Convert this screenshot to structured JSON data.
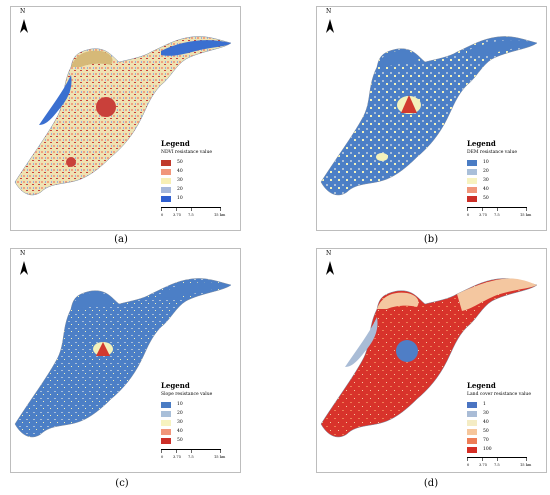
{
  "colors": {
    "border": "#bdbdbd",
    "water": "#3a6fd0",
    "ndvi_base": "#efe2b2",
    "ndvi_high": "#c9403a",
    "ndvi_mid": "#f1a17f",
    "dem_base": "#4c7fc6",
    "dem_mid": "#f3f1bb",
    "dem_high": "#d13a2e",
    "landcover_base": "#d8332b",
    "landcover_water": "#4f7ec6",
    "landcover_light": "#f4c7a0"
  },
  "panels": [
    {
      "id": "a",
      "caption": "(a)",
      "north": "N",
      "legend_title": "Legend",
      "legend_subtitle": "NDVI resistance value",
      "legend_items": [
        {
          "value": "50",
          "color": "#c0392b"
        },
        {
          "value": "40",
          "color": "#f1967a"
        },
        {
          "value": "30",
          "color": "#f7efb5"
        },
        {
          "value": "20",
          "color": "#a6b8db"
        },
        {
          "value": "10",
          "color": "#2f5fd0"
        }
      ],
      "scale_labels": [
        "0",
        "3.75",
        "7.5",
        "15 km"
      ]
    },
    {
      "id": "b",
      "caption": "(b)",
      "north": "N",
      "legend_title": "Legend",
      "legend_subtitle": "DEM resistance value",
      "legend_items": [
        {
          "value": "10",
          "color": "#4a7cc4"
        },
        {
          "value": "20",
          "color": "#a9bfd9"
        },
        {
          "value": "30",
          "color": "#f7f3bf"
        },
        {
          "value": "40",
          "color": "#f1967a"
        },
        {
          "value": "50",
          "color": "#cc2f28"
        }
      ],
      "scale_labels": [
        "0",
        "3.75",
        "7.5",
        "15 km"
      ]
    },
    {
      "id": "c",
      "caption": "(c)",
      "north": "N",
      "legend_title": "Legend",
      "legend_subtitle": "Slope resistance value",
      "legend_items": [
        {
          "value": "10",
          "color": "#4a7cc4"
        },
        {
          "value": "20",
          "color": "#a9bfd9"
        },
        {
          "value": "30",
          "color": "#f7f3bf"
        },
        {
          "value": "40",
          "color": "#f1967a"
        },
        {
          "value": "50",
          "color": "#cc2f28"
        }
      ],
      "scale_labels": [
        "0",
        "3.75",
        "7.5",
        "15 km"
      ]
    },
    {
      "id": "d",
      "caption": "(d)",
      "north": "N",
      "legend_title": "Legend",
      "legend_subtitle": "Land cover resistance value",
      "legend_items": [
        {
          "value": "1",
          "color": "#4a74c2"
        },
        {
          "value": "30",
          "color": "#a9bcd6"
        },
        {
          "value": "40",
          "color": "#f4ecc4"
        },
        {
          "value": "50",
          "color": "#f6c69b"
        },
        {
          "value": "70",
          "color": "#ee7d56"
        },
        {
          "value": "100",
          "color": "#d52e25"
        }
      ],
      "scale_labels": [
        "0",
        "3.75",
        "7.5",
        "15 km"
      ]
    }
  ]
}
